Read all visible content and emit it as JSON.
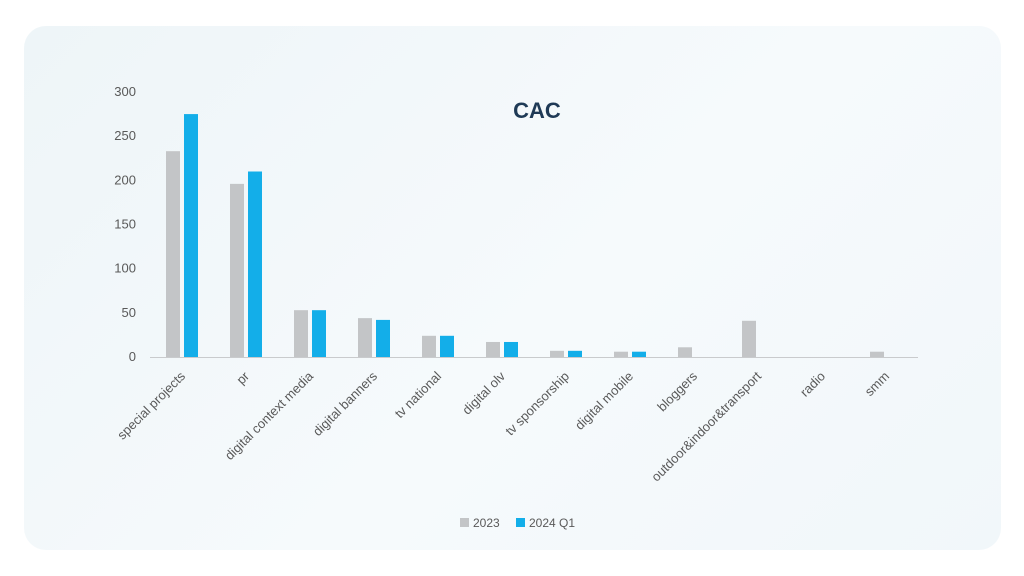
{
  "chart_data": {
    "type": "bar",
    "title": "CAC",
    "xlabel": "",
    "ylabel": "",
    "ylim": [
      0,
      300
    ],
    "yticks": [
      0,
      50,
      100,
      150,
      200,
      250,
      300
    ],
    "grid": false,
    "legend_position": "bottom",
    "categories": [
      "special projects",
      "pr",
      "digital context media",
      "digital banners",
      "tv national",
      "digital olv",
      "tv sponsorship",
      "digital mobile",
      "bloggers",
      "outdoor&indoor&transport",
      "radio",
      "smm"
    ],
    "series": [
      {
        "name": "2023",
        "color": "#c3c5c7",
        "values": [
          233,
          196,
          53,
          44,
          24,
          17,
          7,
          6,
          11,
          41,
          0,
          6
        ]
      },
      {
        "name": "2024 Q1",
        "color": "#13aee9",
        "values": [
          275,
          210,
          53,
          42,
          24,
          17,
          7,
          6,
          0,
          0,
          0,
          0
        ]
      }
    ]
  }
}
